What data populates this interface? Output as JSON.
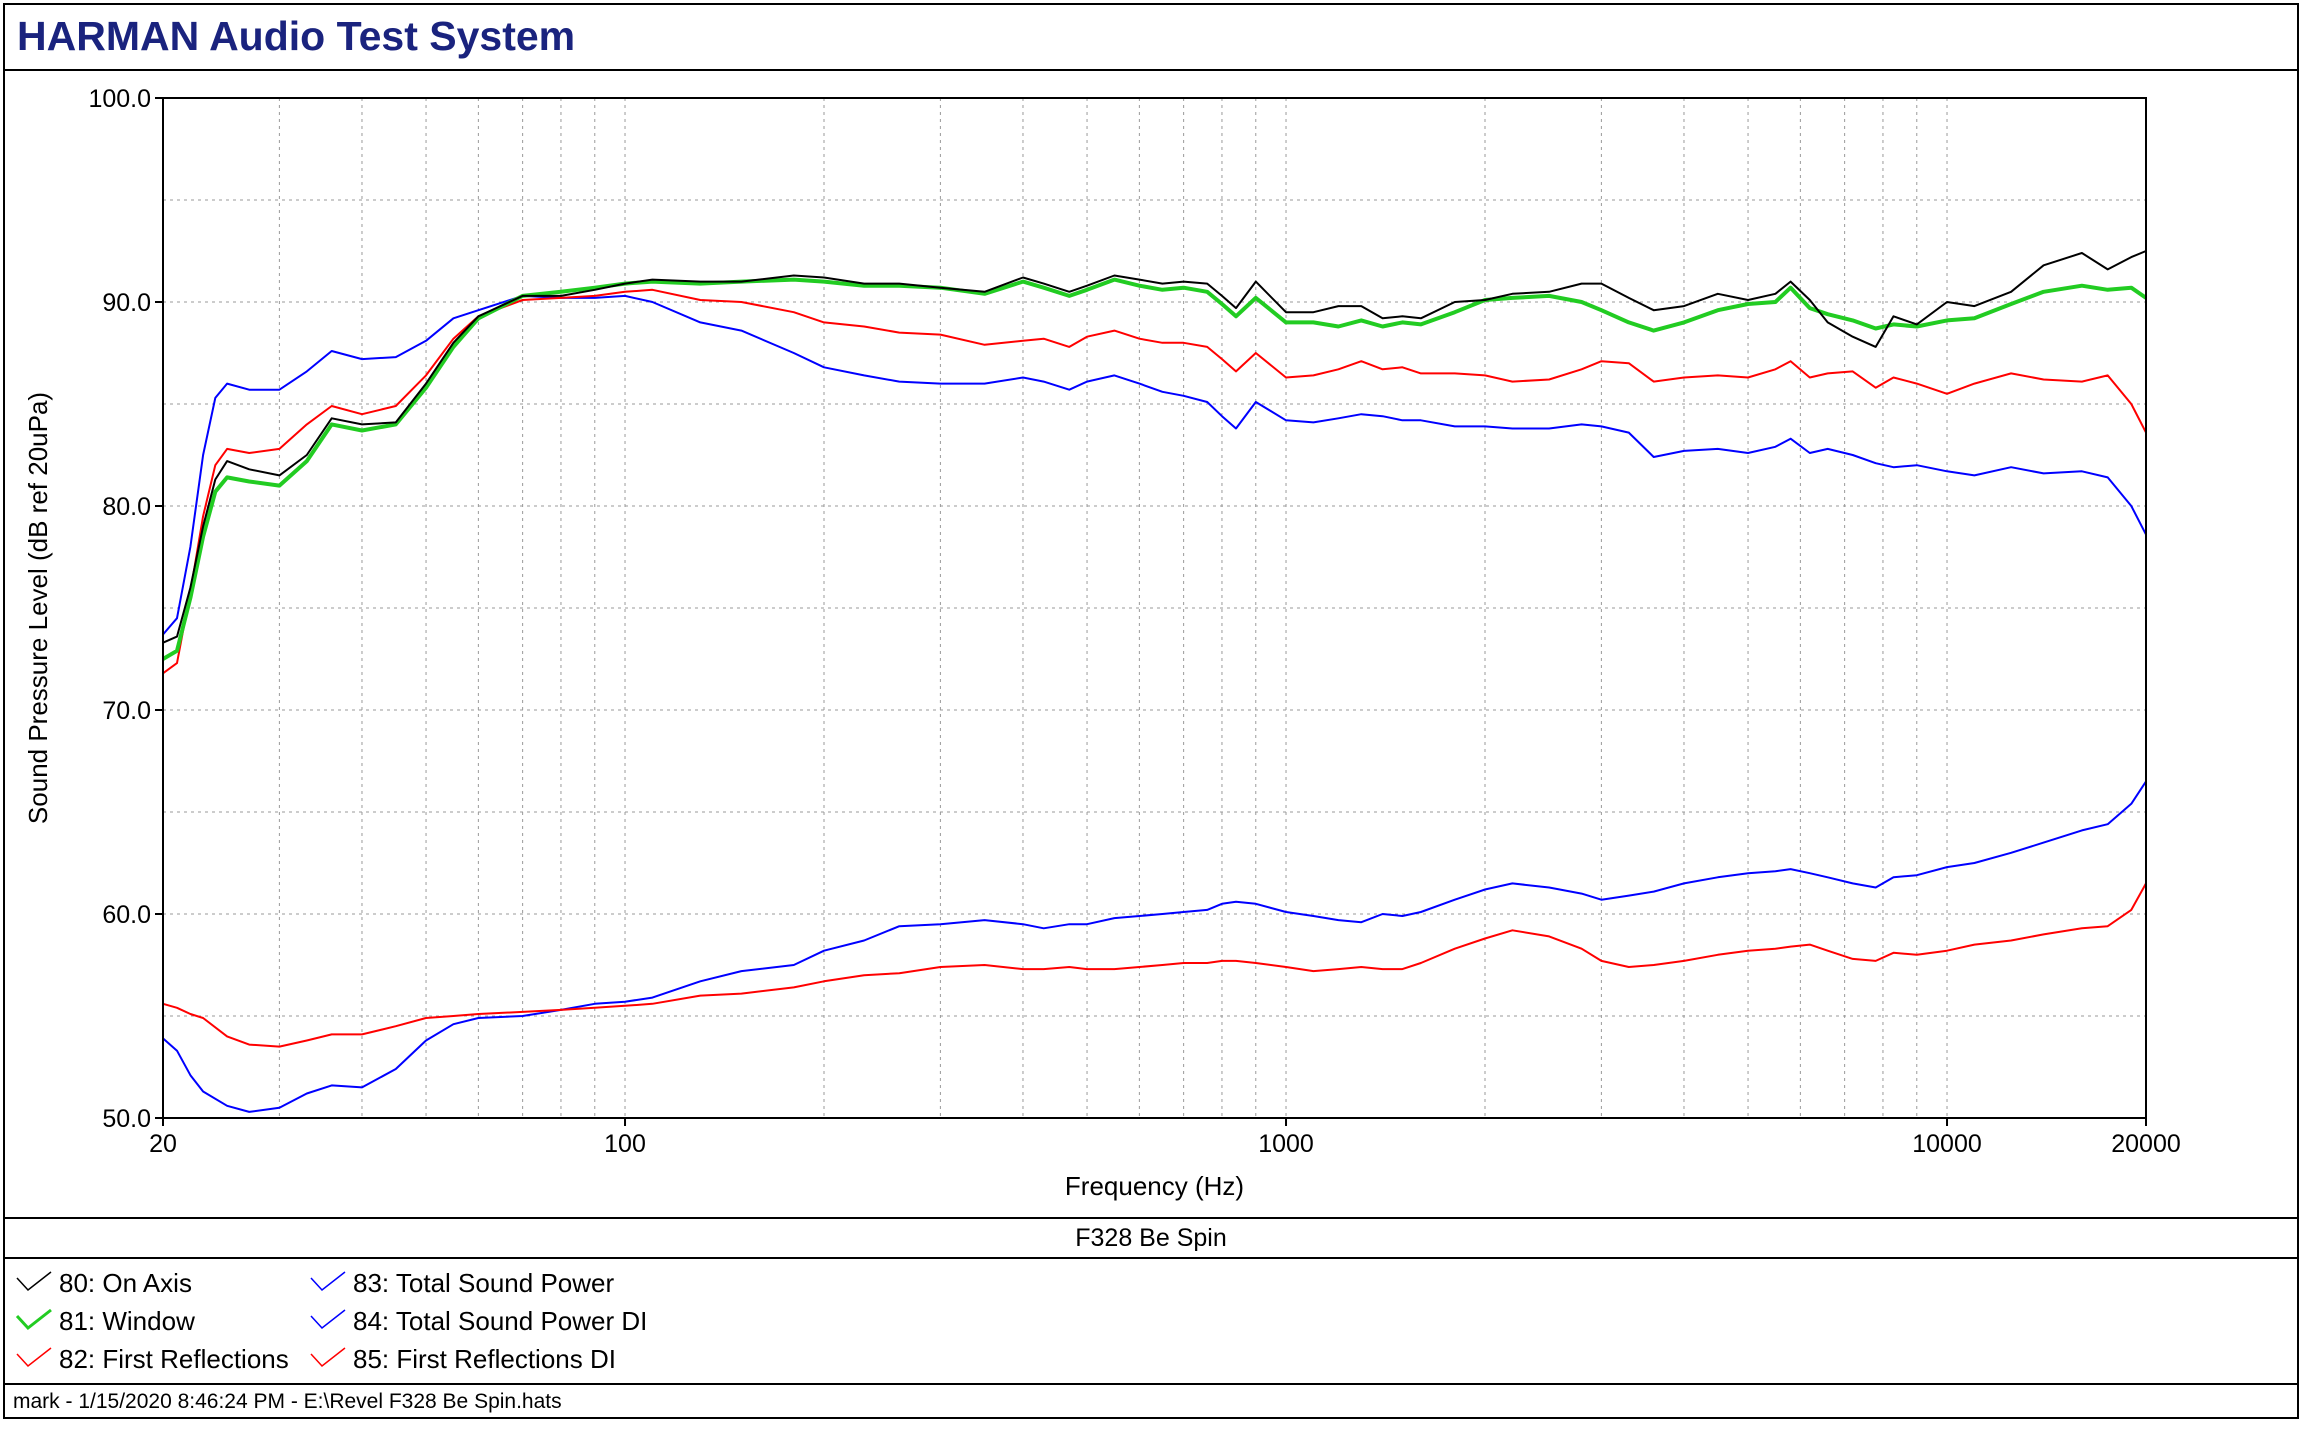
{
  "header": {
    "title": "HARMAN Audio Test System"
  },
  "chart_data": {
    "type": "line",
    "title": "F328 Be Spin",
    "xlabel": "Frequency (Hz)",
    "ylabel": "Sound Pressure Level (dB ref 20uPa)",
    "xscale": "log",
    "xlim": [
      20,
      20000
    ],
    "ylim": [
      50,
      100
    ],
    "grid": true,
    "legend_position": "bottom",
    "x_tick_labels": [
      {
        "x": 20,
        "label": "20"
      },
      {
        "x": 100,
        "label": "100"
      },
      {
        "x": 1000,
        "label": "1000"
      },
      {
        "x": 10000,
        "label": "10000"
      },
      {
        "x": 20000,
        "label": "20000"
      }
    ],
    "y_tick_labels": [
      {
        "y": 50,
        "label": "50.0"
      },
      {
        "y": 60,
        "label": "60.0"
      },
      {
        "y": 70,
        "label": "70.0"
      },
      {
        "y": 80,
        "label": "80.0"
      },
      {
        "y": 90,
        "label": "90.0"
      },
      {
        "y": 100,
        "label": "100.0"
      }
    ],
    "series": [
      {
        "name": "80: On Axis",
        "color": "#000000",
        "width": 2,
        "x": [
          20,
          21,
          22,
          23,
          24,
          25,
          27,
          30,
          33,
          36,
          40,
          45,
          50,
          55,
          60,
          70,
          80,
          90,
          100,
          110,
          130,
          150,
          180,
          200,
          230,
          260,
          300,
          350,
          400,
          430,
          470,
          500,
          550,
          600,
          650,
          700,
          760,
          800,
          840,
          900,
          1000,
          1100,
          1200,
          1300,
          1400,
          1500,
          1600,
          1800,
          2000,
          2200,
          2500,
          2800,
          3000,
          3300,
          3600,
          4000,
          4500,
          5000,
          5500,
          5800,
          6200,
          6600,
          7200,
          7800,
          8300,
          9000,
          10000,
          11000,
          12500,
          14000,
          16000,
          17500,
          19000,
          20000
        ],
        "y": [
          73.3,
          73.6,
          76,
          79,
          81.3,
          82.2,
          81.8,
          81.5,
          82.5,
          84.3,
          84,
          84.1,
          86,
          88,
          89.3,
          90.3,
          90.3,
          90.6,
          90.9,
          91.1,
          91,
          91,
          91.3,
          91.2,
          90.9,
          90.9,
          90.7,
          90.5,
          91.2,
          90.9,
          90.5,
          90.8,
          91.3,
          91.1,
          90.9,
          91,
          90.9,
          90.3,
          89.7,
          91,
          89.5,
          89.5,
          89.8,
          89.8,
          89.2,
          89.3,
          89.2,
          90,
          90.1,
          90.4,
          90.5,
          90.9,
          90.9,
          90.2,
          89.6,
          89.8,
          90.4,
          90.1,
          90.4,
          91,
          90.1,
          89,
          88.3,
          87.8,
          89.3,
          88.9,
          90,
          89.8,
          90.5,
          91.8,
          92.4,
          91.6,
          92.2,
          92.5
        ]
      },
      {
        "name": "81: Window",
        "color": "#22cc22",
        "width": 4,
        "x": [
          20,
          21,
          22,
          23,
          24,
          25,
          27,
          30,
          33,
          36,
          40,
          45,
          50,
          55,
          60,
          70,
          80,
          90,
          100,
          110,
          130,
          150,
          180,
          200,
          230,
          260,
          300,
          350,
          400,
          430,
          470,
          500,
          550,
          600,
          650,
          700,
          760,
          800,
          840,
          900,
          1000,
          1100,
          1200,
          1300,
          1400,
          1500,
          1600,
          1800,
          2000,
          2200,
          2500,
          2800,
          3000,
          3300,
          3600,
          4000,
          4500,
          5000,
          5500,
          5800,
          6200,
          6600,
          7200,
          7800,
          8300,
          9000,
          10000,
          11000,
          12500,
          14000,
          16000,
          17500,
          19000,
          20000
        ],
        "y": [
          72.5,
          72.9,
          75.5,
          78.5,
          80.7,
          81.4,
          81.2,
          81,
          82.2,
          84,
          83.7,
          84,
          85.8,
          87.8,
          89.2,
          90.3,
          90.5,
          90.7,
          90.9,
          91,
          90.9,
          91,
          91.1,
          91,
          90.8,
          90.8,
          90.7,
          90.4,
          91,
          90.7,
          90.3,
          90.6,
          91.1,
          90.8,
          90.6,
          90.7,
          90.5,
          89.9,
          89.3,
          90.2,
          89,
          89,
          88.8,
          89.1,
          88.8,
          89,
          88.9,
          89.5,
          90.1,
          90.2,
          90.3,
          90,
          89.6,
          89,
          88.6,
          89,
          89.6,
          89.9,
          90,
          90.7,
          89.7,
          89.4,
          89.1,
          88.7,
          88.9,
          88.8,
          89.1,
          89.2,
          89.9,
          90.5,
          90.8,
          90.6,
          90.7,
          90.2
        ]
      },
      {
        "name": "82: First Reflections",
        "color": "#ff0000",
        "width": 2,
        "x": [
          20,
          21,
          22,
          23,
          24,
          25,
          27,
          30,
          33,
          36,
          40,
          45,
          50,
          55,
          60,
          70,
          80,
          90,
          100,
          110,
          130,
          150,
          180,
          200,
          230,
          260,
          300,
          350,
          400,
          430,
          470,
          500,
          550,
          600,
          650,
          700,
          760,
          800,
          840,
          900,
          1000,
          1100,
          1200,
          1300,
          1400,
          1500,
          1600,
          1800,
          2000,
          2200,
          2500,
          2800,
          3000,
          3300,
          3600,
          4000,
          4500,
          5000,
          5500,
          5800,
          6200,
          6600,
          7200,
          7800,
          8300,
          9000,
          10000,
          11000,
          12500,
          14000,
          16000,
          17500,
          19000,
          20000
        ],
        "y": [
          71.8,
          72.3,
          75.8,
          79.5,
          82,
          82.8,
          82.6,
          82.8,
          84,
          84.9,
          84.5,
          84.9,
          86.4,
          88.2,
          89.3,
          90.1,
          90.2,
          90.3,
          90.5,
          90.6,
          90.1,
          90,
          89.5,
          89,
          88.8,
          88.5,
          88.4,
          87.9,
          88.1,
          88.2,
          87.8,
          88.3,
          88.6,
          88.2,
          88,
          88,
          87.8,
          87.2,
          86.6,
          87.5,
          86.3,
          86.4,
          86.7,
          87.1,
          86.7,
          86.8,
          86.5,
          86.5,
          86.4,
          86.1,
          86.2,
          86.7,
          87.1,
          87,
          86.1,
          86.3,
          86.4,
          86.3,
          86.7,
          87.1,
          86.3,
          86.5,
          86.6,
          85.8,
          86.3,
          86,
          85.5,
          86,
          86.5,
          86.2,
          86.1,
          86.4,
          85,
          83.6
        ]
      },
      {
        "name": "83: Total Sound Power",
        "color": "#0000ff",
        "width": 2,
        "x": [
          20,
          21,
          22,
          23,
          24,
          25,
          27,
          30,
          33,
          36,
          40,
          45,
          50,
          55,
          60,
          70,
          80,
          90,
          100,
          110,
          130,
          150,
          180,
          200,
          230,
          260,
          300,
          350,
          400,
          430,
          470,
          500,
          550,
          600,
          650,
          700,
          760,
          800,
          840,
          900,
          1000,
          1100,
          1200,
          1300,
          1400,
          1500,
          1600,
          1800,
          2000,
          2200,
          2500,
          2800,
          3000,
          3300,
          3600,
          4000,
          4500,
          5000,
          5500,
          5800,
          6200,
          6600,
          7200,
          7800,
          8300,
          9000,
          10000,
          11000,
          12500,
          14000,
          16000,
          17500,
          19000,
          20000
        ],
        "y": [
          73.7,
          74.5,
          78,
          82.5,
          85.3,
          86,
          85.7,
          85.7,
          86.6,
          87.6,
          87.2,
          87.3,
          88.1,
          89.2,
          89.6,
          90.3,
          90.2,
          90.2,
          90.3,
          90,
          89,
          88.6,
          87.5,
          86.8,
          86.4,
          86.1,
          86,
          86,
          86.3,
          86.1,
          85.7,
          86.1,
          86.4,
          86,
          85.6,
          85.4,
          85.1,
          84.4,
          83.8,
          85.1,
          84.2,
          84.1,
          84.3,
          84.5,
          84.4,
          84.2,
          84.2,
          83.9,
          83.9,
          83.8,
          83.8,
          84,
          83.9,
          83.6,
          82.4,
          82.7,
          82.8,
          82.6,
          82.9,
          83.3,
          82.6,
          82.8,
          82.5,
          82.1,
          81.9,
          82,
          81.7,
          81.5,
          81.9,
          81.6,
          81.7,
          81.4,
          80,
          78.6
        ]
      },
      {
        "name": "84: Total Sound Power DI",
        "color": "#0000ff",
        "width": 2,
        "x": [
          20,
          21,
          22,
          23,
          25,
          27,
          30,
          33,
          36,
          40,
          45,
          50,
          55,
          60,
          70,
          80,
          90,
          100,
          110,
          130,
          150,
          180,
          200,
          230,
          260,
          300,
          350,
          400,
          430,
          470,
          500,
          550,
          600,
          650,
          700,
          760,
          800,
          840,
          900,
          1000,
          1100,
          1200,
          1300,
          1400,
          1500,
          1600,
          1800,
          2000,
          2200,
          2500,
          2800,
          3000,
          3300,
          3600,
          4000,
          4500,
          5000,
          5500,
          5800,
          6200,
          6600,
          7200,
          7800,
          8300,
          9000,
          10000,
          11000,
          12500,
          14000,
          16000,
          17500,
          19000,
          20000
        ],
        "y": [
          53.9,
          53.3,
          52.1,
          51.3,
          50.6,
          50.3,
          50.5,
          51.2,
          51.6,
          51.5,
          52.4,
          53.8,
          54.6,
          54.9,
          55,
          55.3,
          55.6,
          55.7,
          55.9,
          56.7,
          57.2,
          57.5,
          58.2,
          58.7,
          59.4,
          59.5,
          59.7,
          59.5,
          59.3,
          59.5,
          59.5,
          59.8,
          59.9,
          60,
          60.1,
          60.2,
          60.5,
          60.6,
          60.5,
          60.1,
          59.9,
          59.7,
          59.6,
          60,
          59.9,
          60.1,
          60.7,
          61.2,
          61.5,
          61.3,
          61,
          60.7,
          60.9,
          61.1,
          61.5,
          61.8,
          62,
          62.1,
          62.2,
          62,
          61.8,
          61.5,
          61.3,
          61.8,
          61.9,
          62.3,
          62.5,
          63,
          63.5,
          64.1,
          64.4,
          65.4,
          66.5
        ]
      },
      {
        "name": "85: First Reflections DI",
        "color": "#ff0000",
        "width": 2,
        "x": [
          20,
          21,
          22,
          23,
          25,
          27,
          30,
          33,
          36,
          40,
          45,
          50,
          55,
          60,
          70,
          80,
          90,
          100,
          110,
          130,
          150,
          180,
          200,
          230,
          260,
          300,
          350,
          400,
          430,
          470,
          500,
          550,
          600,
          650,
          700,
          760,
          800,
          840,
          900,
          1000,
          1100,
          1200,
          1300,
          1400,
          1500,
          1600,
          1800,
          2000,
          2200,
          2500,
          2800,
          3000,
          3300,
          3600,
          4000,
          4500,
          5000,
          5500,
          5800,
          6200,
          6600,
          7200,
          7800,
          8300,
          9000,
          10000,
          11000,
          12500,
          14000,
          16000,
          17500,
          19000,
          20000
        ],
        "y": [
          55.6,
          55.4,
          55.1,
          54.9,
          54,
          53.6,
          53.5,
          53.8,
          54.1,
          54.1,
          54.5,
          54.9,
          55,
          55.1,
          55.2,
          55.3,
          55.4,
          55.5,
          55.6,
          56,
          56.1,
          56.4,
          56.7,
          57,
          57.1,
          57.4,
          57.5,
          57.3,
          57.3,
          57.4,
          57.3,
          57.3,
          57.4,
          57.5,
          57.6,
          57.6,
          57.7,
          57.7,
          57.6,
          57.4,
          57.2,
          57.3,
          57.4,
          57.3,
          57.3,
          57.6,
          58.3,
          58.8,
          59.2,
          58.9,
          58.3,
          57.7,
          57.4,
          57.5,
          57.7,
          58,
          58.2,
          58.3,
          58.4,
          58.5,
          58.2,
          57.8,
          57.7,
          58.1,
          58,
          58.2,
          58.5,
          58.7,
          59,
          59.3,
          59.4,
          60.2,
          61.5
        ]
      }
    ]
  },
  "footer": {
    "text": "mark - 1/15/2020 8:46:24 PM - E:\\Revel F328 Be Spin.hats"
  }
}
